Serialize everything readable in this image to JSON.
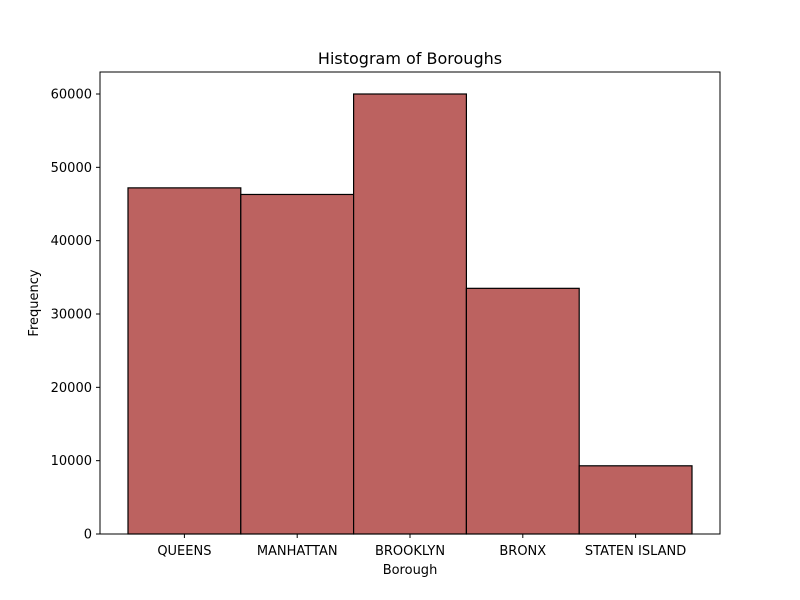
{
  "chart_data": {
    "type": "bar",
    "title": "Histogram of Boroughs",
    "xlabel": "Borough",
    "ylabel": "Frequency",
    "categories": [
      "QUEENS",
      "MANHATTAN",
      "BROOKLYN",
      "BRONX",
      "STATEN ISLAND"
    ],
    "values": [
      47200,
      46300,
      60000,
      33500,
      9300
    ],
    "ylim": [
      0,
      63000
    ],
    "yticks": [
      0,
      10000,
      20000,
      30000,
      40000,
      50000,
      60000
    ],
    "grid": false,
    "legend": false,
    "colors": {
      "bar_fill": "#bc6260",
      "bar_edge": "#000000"
    }
  }
}
